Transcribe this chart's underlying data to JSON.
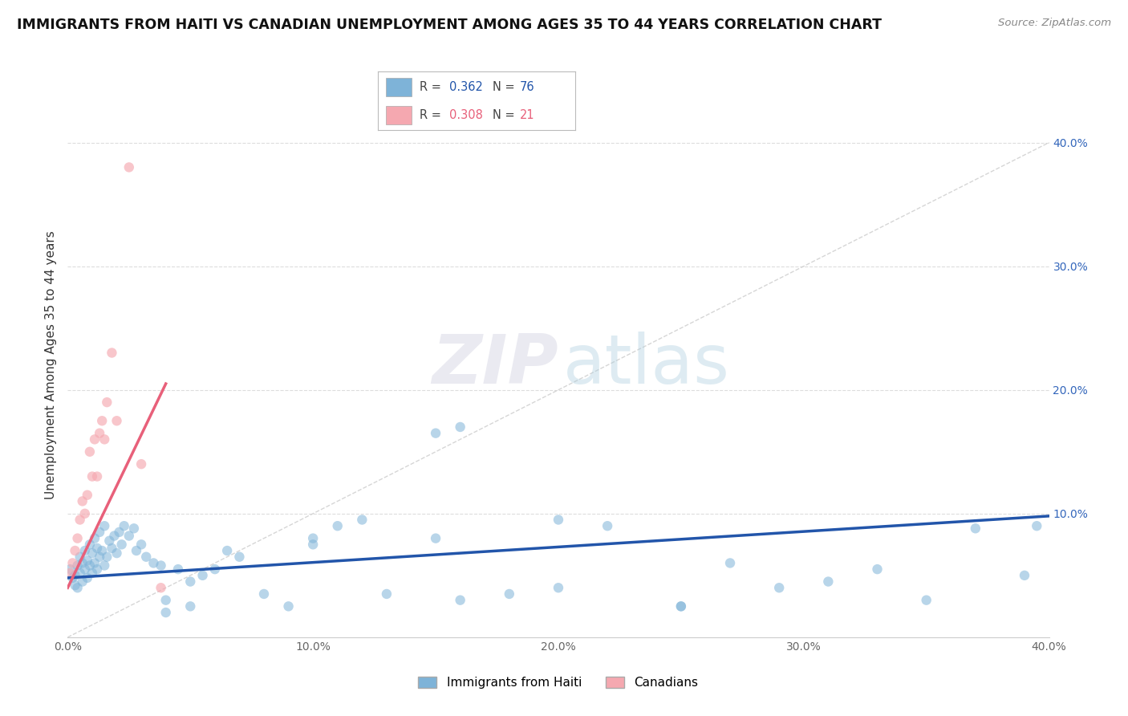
{
  "title": "IMMIGRANTS FROM HAITI VS CANADIAN UNEMPLOYMENT AMONG AGES 35 TO 44 YEARS CORRELATION CHART",
  "source": "Source: ZipAtlas.com",
  "ylabel": "Unemployment Among Ages 35 to 44 years",
  "xlim": [
    0.0,
    0.4
  ],
  "ylim": [
    0.0,
    0.44
  ],
  "xticks": [
    0.0,
    0.1,
    0.2,
    0.3,
    0.4
  ],
  "xtick_labels": [
    "0.0%",
    "10.0%",
    "20.0%",
    "30.0%",
    "40.0%"
  ],
  "ytick_positions": [
    0.1,
    0.2,
    0.3,
    0.4
  ],
  "ytick_labels": [
    "10.0%",
    "20.0%",
    "30.0%",
    "40.0%"
  ],
  "legend_R_blue": "0.362",
  "legend_N_blue": "76",
  "legend_R_pink": "0.308",
  "legend_N_pink": "21",
  "blue_color": "#7EB3D8",
  "pink_color": "#F5A8B0",
  "blue_line_color": "#2255AA",
  "pink_line_color": "#E8607A",
  "blue_scatter_x": [
    0.001,
    0.002,
    0.003,
    0.003,
    0.004,
    0.004,
    0.005,
    0.005,
    0.006,
    0.006,
    0.007,
    0.007,
    0.008,
    0.008,
    0.009,
    0.009,
    0.01,
    0.01,
    0.011,
    0.011,
    0.012,
    0.012,
    0.013,
    0.013,
    0.014,
    0.015,
    0.015,
    0.016,
    0.017,
    0.018,
    0.019,
    0.02,
    0.021,
    0.022,
    0.023,
    0.025,
    0.027,
    0.028,
    0.03,
    0.032,
    0.035,
    0.038,
    0.04,
    0.045,
    0.05,
    0.055,
    0.06,
    0.065,
    0.07,
    0.08,
    0.09,
    0.1,
    0.11,
    0.12,
    0.13,
    0.15,
    0.16,
    0.18,
    0.2,
    0.22,
    0.25,
    0.27,
    0.29,
    0.31,
    0.33,
    0.35,
    0.37,
    0.39,
    0.395,
    0.05,
    0.1,
    0.15,
    0.2,
    0.25,
    0.04,
    0.16
  ],
  "blue_scatter_y": [
    0.055,
    0.048,
    0.05,
    0.042,
    0.058,
    0.04,
    0.052,
    0.065,
    0.045,
    0.06,
    0.055,
    0.07,
    0.048,
    0.062,
    0.058,
    0.075,
    0.052,
    0.068,
    0.06,
    0.08,
    0.055,
    0.072,
    0.065,
    0.085,
    0.07,
    0.058,
    0.09,
    0.065,
    0.078,
    0.072,
    0.082,
    0.068,
    0.085,
    0.075,
    0.09,
    0.082,
    0.088,
    0.07,
    0.075,
    0.065,
    0.06,
    0.058,
    0.03,
    0.055,
    0.045,
    0.05,
    0.055,
    0.07,
    0.065,
    0.035,
    0.025,
    0.075,
    0.09,
    0.095,
    0.035,
    0.08,
    0.03,
    0.035,
    0.04,
    0.09,
    0.025,
    0.06,
    0.04,
    0.045,
    0.055,
    0.03,
    0.088,
    0.05,
    0.09,
    0.025,
    0.08,
    0.165,
    0.095,
    0.025,
    0.02,
    0.17
  ],
  "pink_scatter_x": [
    0.001,
    0.002,
    0.003,
    0.004,
    0.005,
    0.006,
    0.007,
    0.008,
    0.009,
    0.01,
    0.011,
    0.012,
    0.013,
    0.014,
    0.015,
    0.016,
    0.018,
    0.02,
    0.025,
    0.03,
    0.038
  ],
  "pink_scatter_y": [
    0.052,
    0.06,
    0.07,
    0.08,
    0.095,
    0.11,
    0.1,
    0.115,
    0.15,
    0.13,
    0.16,
    0.13,
    0.165,
    0.175,
    0.16,
    0.19,
    0.23,
    0.175,
    0.38,
    0.14,
    0.04
  ],
  "blue_trend_x": [
    0.0,
    0.4
  ],
  "blue_trend_y": [
    0.048,
    0.098
  ],
  "pink_trend_x": [
    0.0,
    0.04
  ],
  "pink_trend_y": [
    0.04,
    0.205
  ],
  "diag_line_x": [
    0.0,
    0.4
  ],
  "diag_line_y": [
    0.0,
    0.4
  ]
}
